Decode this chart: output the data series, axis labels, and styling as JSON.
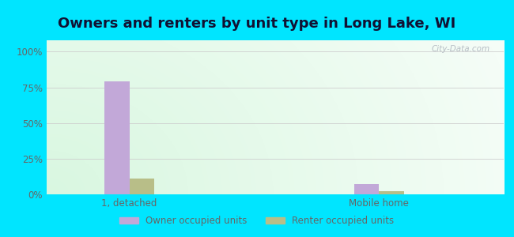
{
  "title": "Owners and renters by unit type in Long Lake, WI",
  "categories": [
    "1, detached",
    "Mobile home"
  ],
  "owner_values": [
    79,
    7
  ],
  "renter_values": [
    11,
    2
  ],
  "owner_color": "#c2a8d8",
  "renter_color": "#b8be88",
  "yticks": [
    0,
    25,
    50,
    75,
    100
  ],
  "ytick_labels": [
    "0%",
    "25%",
    "50%",
    "75%",
    "100%"
  ],
  "ylim_max": 108,
  "bar_width": 0.3,
  "outer_bg": "#00e5ff",
  "bg_color_left": "#c8e8d4",
  "bg_color_right": "#edfaf4",
  "title_fontsize": 13,
  "legend_owner": "Owner occupied units",
  "legend_renter": "Renter occupied units",
  "watermark": "City-Data.com",
  "x_positions": [
    1,
    4
  ],
  "xlim": [
    0.0,
    5.5
  ],
  "grid_color": "#e0e0e0",
  "tick_color": "#666666",
  "title_color": "#111133",
  "title_bg": "#00e5ff"
}
